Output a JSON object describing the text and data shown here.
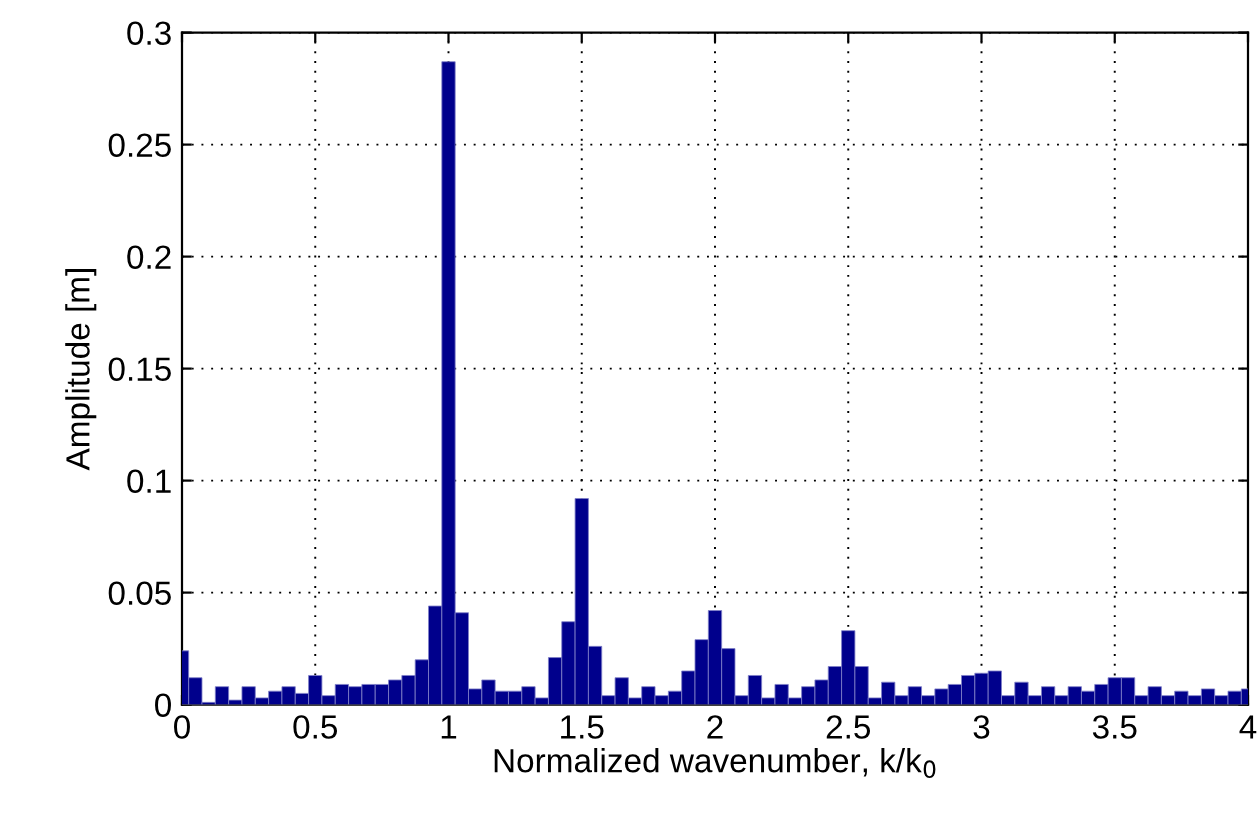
{
  "chart_data": {
    "type": "bar",
    "xlabel": "Normalized wavenumber, k/k$_{0}$",
    "ylabel": "Amplitude [m]",
    "x": [
      0,
      0.05,
      0.1,
      0.15,
      0.2,
      0.25,
      0.3,
      0.35,
      0.4,
      0.45,
      0.5,
      0.55,
      0.6,
      0.65,
      0.7,
      0.75,
      0.8,
      0.85,
      0.9,
      0.95,
      1,
      1.05,
      1.1,
      1.15,
      1.2,
      1.25,
      1.3,
      1.35,
      1.4,
      1.45,
      1.5,
      1.55,
      1.6,
      1.65,
      1.7,
      1.75,
      1.8,
      1.85,
      1.9,
      1.95,
      2,
      2.05,
      2.1,
      2.15,
      2.2,
      2.25,
      2.3,
      2.35,
      2.4,
      2.45,
      2.5,
      2.55,
      2.6,
      2.65,
      2.7,
      2.75,
      2.8,
      2.85,
      2.9,
      2.95,
      3,
      3.05,
      3.1,
      3.15,
      3.2,
      3.25,
      3.3,
      3.35,
      3.4,
      3.45,
      3.5,
      3.55,
      3.6,
      3.65,
      3.7,
      3.75,
      3.8,
      3.85,
      3.9,
      3.95,
      4
    ],
    "values": [
      0.024,
      0.012,
      0.001,
      0.008,
      0.002,
      0.008,
      0.003,
      0.006,
      0.008,
      0.005,
      0.013,
      0.004,
      0.009,
      0.008,
      0.009,
      0.009,
      0.011,
      0.013,
      0.02,
      0.044,
      0.287,
      0.041,
      0.007,
      0.011,
      0.006,
      0.006,
      0.008,
      0.003,
      0.021,
      0.037,
      0.092,
      0.026,
      0.004,
      0.012,
      0.003,
      0.008,
      0.004,
      0.006,
      0.015,
      0.029,
      0.042,
      0.025,
      0.004,
      0.013,
      0.003,
      0.009,
      0.003,
      0.008,
      0.011,
      0.017,
      0.033,
      0.017,
      0.003,
      0.01,
      0.004,
      0.008,
      0.004,
      0.007,
      0.009,
      0.013,
      0.014,
      0.015,
      0.004,
      0.01,
      0.004,
      0.008,
      0.004,
      0.008,
      0.006,
      0.009,
      0.012,
      0.012,
      0.004,
      0.008,
      0.004,
      0.006,
      0.004,
      0.007,
      0.004,
      0.006,
      0.007
    ],
    "color": "#00008c",
    "xlim": [
      0,
      4
    ],
    "xticks": [
      0,
      0.5,
      1,
      1.5,
      2,
      2.5,
      3,
      3.5,
      4
    ],
    "ylim": [
      0,
      0.3
    ],
    "yticks": [
      0,
      0.05,
      0.1,
      0.15,
      0.2,
      0.25,
      0.3
    ],
    "grid": true
  }
}
